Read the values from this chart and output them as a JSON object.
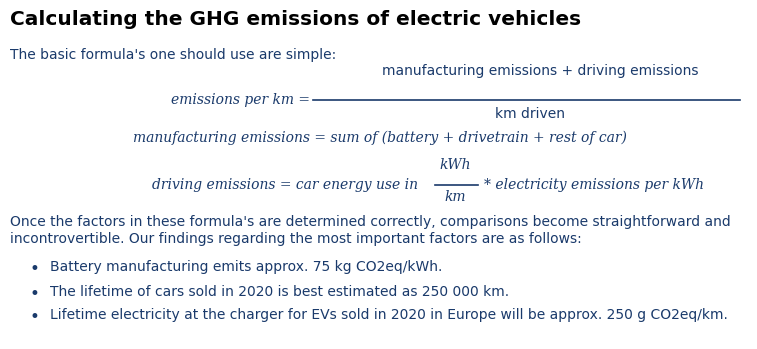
{
  "title": "Calculating the GHG emissions of electric vehicles",
  "subtitle": "The basic formula's one should use are simple:",
  "formula1_lhs": "emissions per km =",
  "formula1_num": "manufacturing emissions + driving emissions",
  "formula1_den": "km driven",
  "formula2": "manufacturing emissions = sum of (battery + drivetrain + rest of car)",
  "formula3_lhs": "driving emissions = car energy use in",
  "formula3_frac_num": "kWh",
  "formula3_frac_den": "km",
  "formula3_rhs": "* electricity emissions per kWh",
  "body_line1": "Once the factors in these formula's are determined correctly, comparisons become straightforward and",
  "body_line2": "incontrovertible. Our findings regarding the most important factors are as follows:",
  "bullet1": "Battery manufacturing emits approx. 75 kg CO2eq/kWh.",
  "bullet2": "The lifetime of cars sold in 2020 is best estimated as 250 000 km.",
  "bullet3": "Lifetime electricity at the charger for EVs sold in 2020 in Europe will be approx. 250 g CO2eq/km.",
  "text_color": "#1a3a6b",
  "title_color": "#000000",
  "bg_color": "#ffffff",
  "title_fontsize": 14.5,
  "body_fontsize": 10,
  "formula_fontsize": 10
}
